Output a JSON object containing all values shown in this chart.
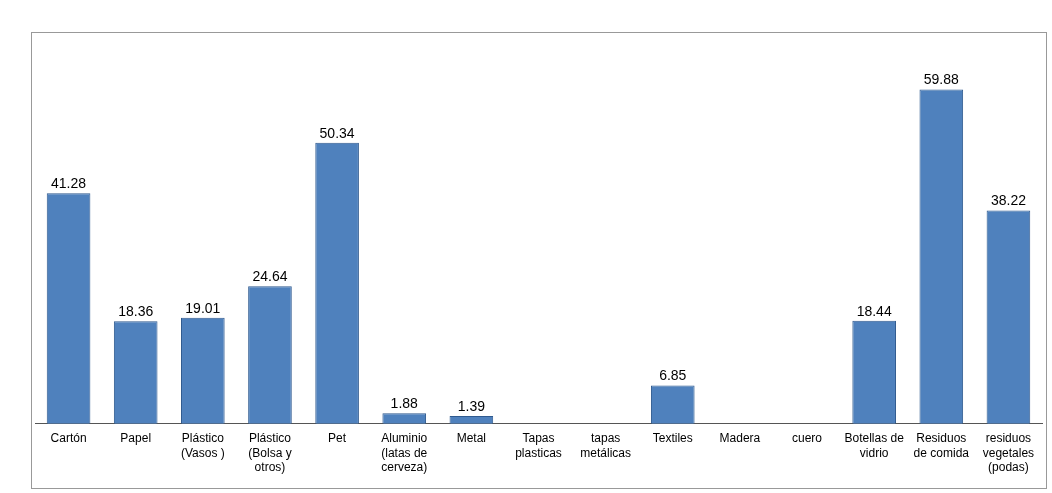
{
  "chart_data": {
    "type": "bar",
    "categories": [
      "Cartón",
      "Papel",
      "Plástico (Vasos )",
      "Plástico (Bolsa y otros)",
      "Pet",
      "Aluminio (latas de cerveza)",
      "Metal",
      "Tapas plasticas",
      "tapas metálicas",
      "Textiles",
      "Madera",
      "cuero",
      "Botellas de vidrio",
      "Residuos de comida",
      "residuos vegetales (podas)"
    ],
    "values": [
      41.28,
      18.36,
      19.01,
      24.64,
      50.34,
      1.88,
      1.39,
      0,
      0,
      6.85,
      0,
      0,
      18.44,
      59.88,
      38.22
    ],
    "value_labels": [
      "41.28",
      "18.36",
      "19.01",
      "24.64",
      "50.34",
      "1.88",
      "1.39",
      null,
      null,
      "6.85",
      null,
      null,
      "18.44",
      "59.88",
      "38.22"
    ],
    "color": "#4f81bd",
    "ylim": [
      0,
      70
    ],
    "tick_labels": "x",
    "grid": false,
    "legend": false
  }
}
